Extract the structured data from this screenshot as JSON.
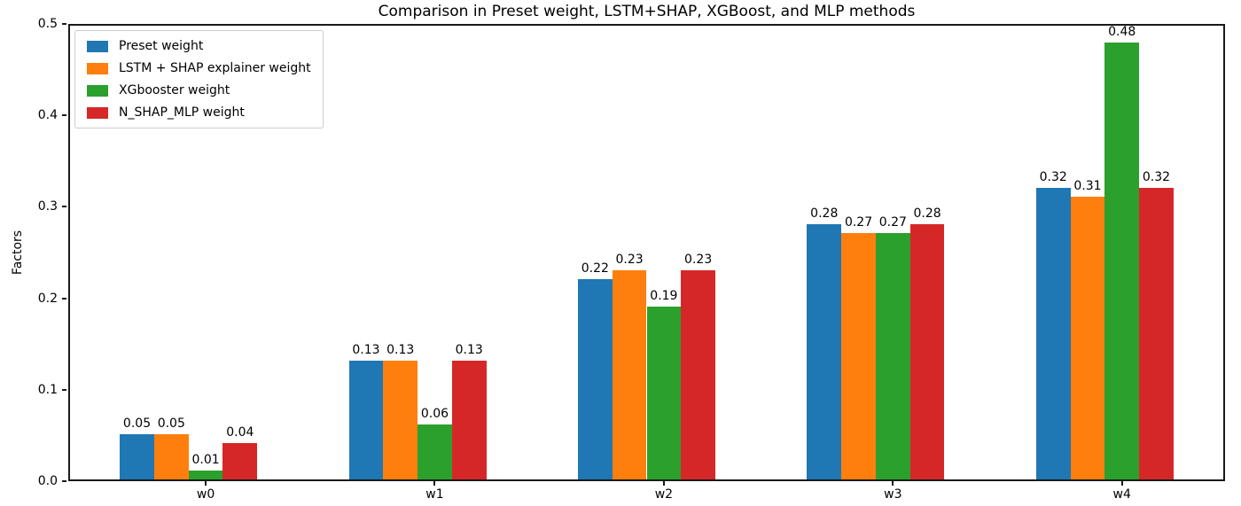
{
  "chart_data": {
    "type": "bar",
    "title": "Comparison in Preset weight, LSTM+SHAP, XGBoost, and MLP methods",
    "xlabel": "",
    "ylabel": "Factors",
    "categories": [
      "w0",
      "w1",
      "w2",
      "w3",
      "w4"
    ],
    "series": [
      {
        "name": "Preset weight",
        "color": "#1f77b4",
        "values": [
          0.05,
          0.13,
          0.22,
          0.28,
          0.32
        ]
      },
      {
        "name": "LSTM + SHAP explainer weight",
        "color": "#ff7f0e",
        "values": [
          0.05,
          0.13,
          0.23,
          0.27,
          0.31
        ]
      },
      {
        "name": "XGbooster weight",
        "color": "#2ca02c",
        "values": [
          0.01,
          0.06,
          0.19,
          0.27,
          0.48
        ]
      },
      {
        "name": "N_SHAP_MLP weight",
        "color": "#d62728",
        "values": [
          0.04,
          0.13,
          0.23,
          0.28,
          0.32
        ]
      }
    ],
    "ylim": [
      0.0,
      0.5
    ],
    "yticks": [
      0.0,
      0.1,
      0.2,
      0.3,
      0.4,
      0.5
    ],
    "bar_labels": true,
    "legend_position": "upper left",
    "grid": false,
    "background_color": "#ffffff",
    "spine_color": "#1a1a1a",
    "text_color": "#000000"
  }
}
